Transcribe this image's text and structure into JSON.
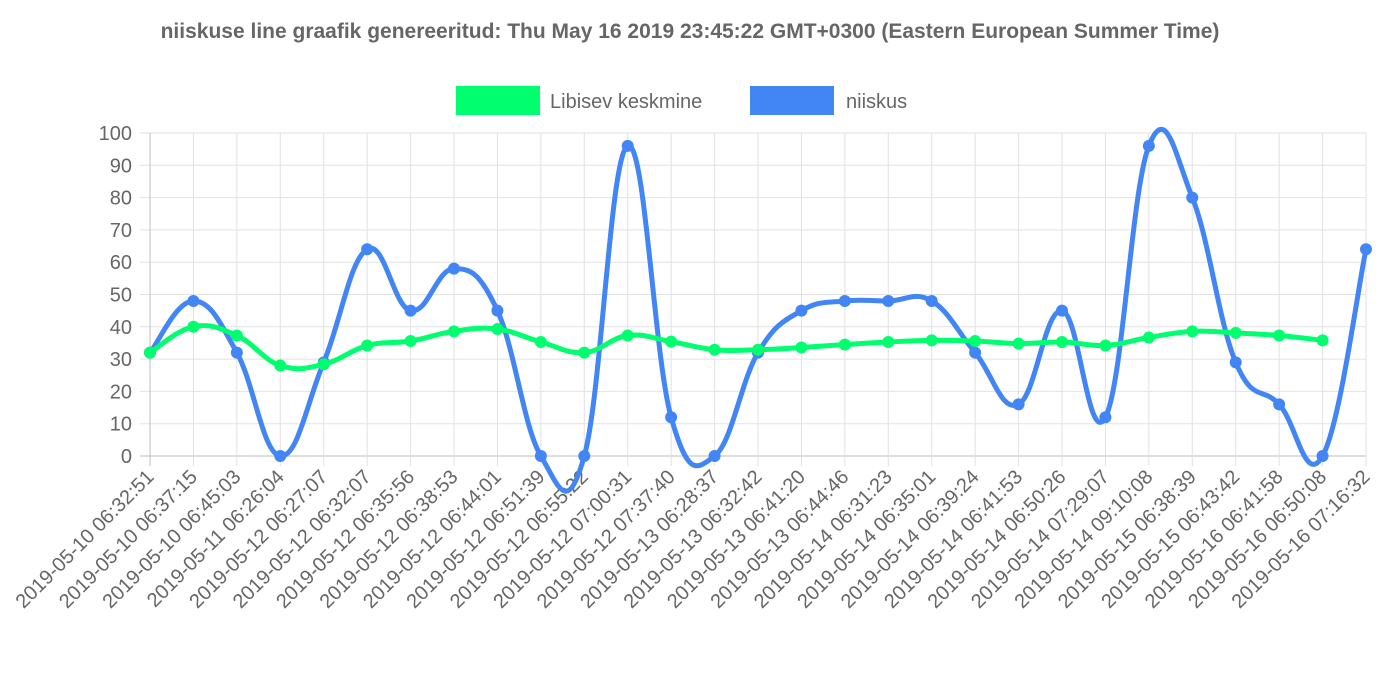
{
  "chart_data": {
    "type": "line",
    "title": "niiskuse line graafik genereeritud: Thu May 16 2019 23:45:22 GMT+0300 (Eastern European Summer Time)",
    "x": [
      "2019-05-10 06:32:51",
      "2019-05-10 06:37:15",
      "2019-05-10 06:45:03",
      "2019-05-11 06:26:04",
      "2019-05-12 06:27:07",
      "2019-05-12 06:32:07",
      "2019-05-12 06:35:56",
      "2019-05-12 06:38:53",
      "2019-05-12 06:44:01",
      "2019-05-12 06:51:39",
      "2019-05-12 06:55:22",
      "2019-05-12 07:00:31",
      "2019-05-12 07:37:40",
      "2019-05-13 06:28:37",
      "2019-05-13 06:32:42",
      "2019-05-13 06:41:20",
      "2019-05-13 06:44:46",
      "2019-05-14 06:31:23",
      "2019-05-14 06:35:01",
      "2019-05-14 06:39:24",
      "2019-05-14 06:41:53",
      "2019-05-14 06:50:26",
      "2019-05-14 07:29:07",
      "2019-05-14 09:10:08",
      "2019-05-15 06:38:39",
      "2019-05-15 06:43:42",
      "2019-05-16 06:41:58",
      "2019-05-16 06:50:08",
      "2019-05-16 07:16:32"
    ],
    "ylim": [
      0,
      100
    ],
    "yticks": [
      0,
      10,
      20,
      30,
      40,
      50,
      60,
      70,
      80,
      90,
      100
    ],
    "grid": true,
    "legend_position": "top",
    "series": [
      {
        "name": "Libisev keskmine",
        "color": "#00ff6e",
        "values": [
          32,
          40,
          37.3,
          28,
          28.4,
          34.2,
          35.6,
          38.6,
          39.3,
          35.3,
          32,
          37.3,
          35.4,
          32.9,
          32.9,
          33.6,
          34.5,
          35.3,
          35.8,
          35.6,
          34.8,
          35.3,
          34.2,
          36.7,
          38.6,
          38.1,
          37.3,
          35.8,
          null
        ]
      },
      {
        "name": "niiskus",
        "color": "#4285f4",
        "values": [
          32,
          48,
          32,
          0,
          29,
          64,
          45,
          58,
          45,
          0,
          0,
          96,
          12,
          0,
          32,
          45,
          48,
          48,
          48,
          32,
          16,
          45,
          12,
          96,
          80,
          29,
          16,
          0,
          64
        ]
      }
    ]
  }
}
